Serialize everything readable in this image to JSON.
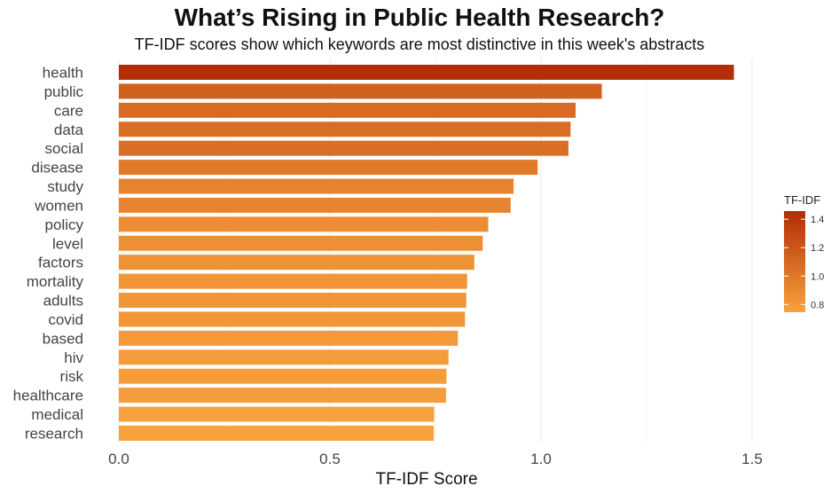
{
  "chart_data": {
    "type": "bar",
    "orientation": "horizontal",
    "title": "What’s Rising in Public Health Research?",
    "subtitle": "TF-IDF scores show which keywords are most distinctive in this week's abstracts",
    "xlabel": "TF-IDF Score",
    "ylabel": "",
    "xlim": [
      0,
      1.62
    ],
    "x_ticks": [
      0.0,
      0.5,
      1.0,
      1.5
    ],
    "x_tick_labels": [
      "0.0",
      "0.5",
      "1.0",
      "1.5"
    ],
    "grid": "vertical major",
    "categories": [
      "health",
      "public",
      "care",
      "data",
      "social",
      "disease",
      "study",
      "women",
      "policy",
      "level",
      "factors",
      "mortality",
      "adults",
      "covid",
      "based",
      "hiv",
      "risk",
      "healthcare",
      "medical",
      "research"
    ],
    "values": [
      1.457,
      1.144,
      1.082,
      1.07,
      1.065,
      0.992,
      0.935,
      0.928,
      0.875,
      0.862,
      0.842,
      0.825,
      0.823,
      0.82,
      0.803,
      0.781,
      0.776,
      0.775,
      0.747,
      0.746
    ],
    "legend": {
      "title": "TF-IDF",
      "position": "right",
      "ticks": [
        0.8,
        1.0,
        1.2,
        1.4
      ],
      "tick_labels": [
        "0.8",
        "1.0",
        "1.2",
        "1.4"
      ],
      "range": [
        0.746,
        1.457
      ],
      "color_low": "#f9a23d",
      "color_high": "#b12e06"
    }
  }
}
